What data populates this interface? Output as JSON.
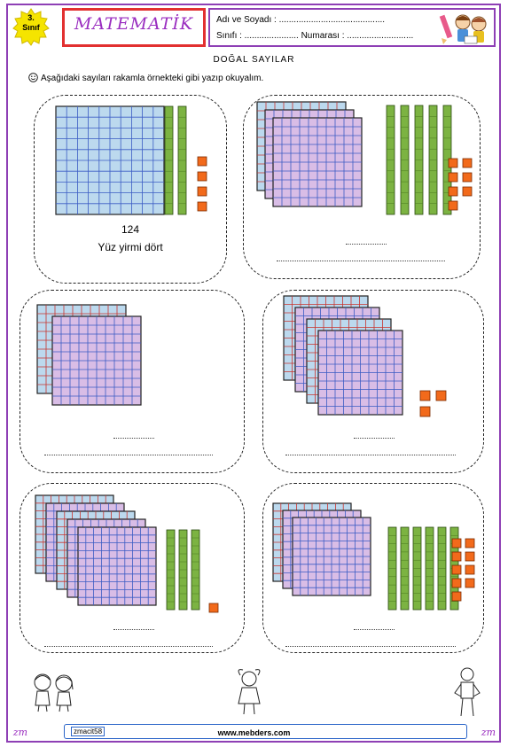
{
  "header": {
    "grade_number": "3.",
    "grade_word": "Sınıf",
    "title": "MATEMATİK",
    "name_label": "Adı ve Soyadı : ...........................................",
    "class_label": "Sınıfı : ......................  Numarası : ...........................",
    "icon": "pencil-kids-icon"
  },
  "worksheet": {
    "heading": "DOĞAL SAYILAR",
    "instruction": "Aşağıdaki sayıları rakamla örnekteki gibi yazıp okuyalım.",
    "smiley_icon": "smiley-icon"
  },
  "cards": [
    {
      "hundreds": 1,
      "tens": 2,
      "ones": 4,
      "number": "124",
      "words": "Yüz yirmi dört"
    },
    {
      "hundreds": 3,
      "tens": 5,
      "ones": 7,
      "number": "",
      "words": ""
    },
    {
      "hundreds": 2,
      "tens": 0,
      "ones": 0,
      "number": "",
      "words": ""
    },
    {
      "hundreds": 4,
      "tens": 0,
      "ones": 3,
      "number": "",
      "words": ""
    },
    {
      "hundreds": 5,
      "tens": 3,
      "ones": 1,
      "number": "",
      "words": ""
    },
    {
      "hundreds": 3,
      "tens": 6,
      "ones": 9,
      "number": "",
      "words": ""
    }
  ],
  "colors": {
    "frame": "#8e3fb5",
    "title_border": "#e23030",
    "grid_blue": "#bcd9ee",
    "grid_pink": "#d9bde6",
    "grid_red_line": "#c8342e",
    "grid_blue_line": "#3b5cc4",
    "rod": "#7cb342",
    "unit": "#f26a1b"
  },
  "footer": {
    "code": "zmacit58",
    "url": "www.mebders.com",
    "corner_mark": "zm"
  },
  "decor": {
    "left_figure": "children-icon",
    "center_figure": "girl-icon",
    "right_figure": "boy-icon"
  }
}
